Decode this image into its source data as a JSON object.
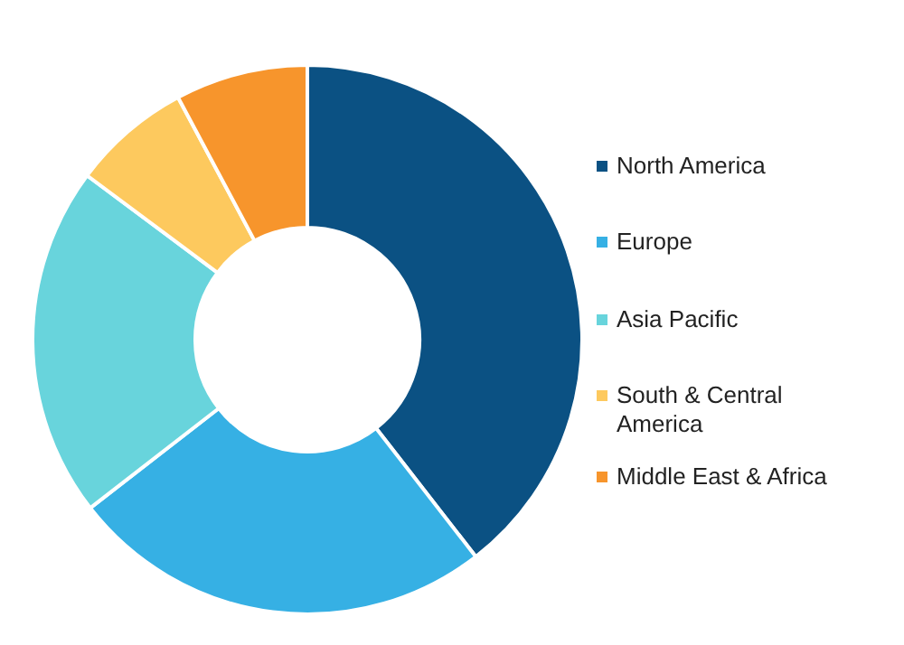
{
  "chart_data": {
    "type": "donut",
    "categories": [
      "North America",
      "Europe",
      "Asia Pacific",
      "South & Central America",
      "Middle East & Africa"
    ],
    "values": [
      39.5,
      25,
      20.7,
      7,
      7.8
    ],
    "colors": [
      "#0b5183",
      "#36b0e4",
      "#68d4dc",
      "#fdc95e",
      "#f7952c"
    ],
    "legend": "right"
  }
}
